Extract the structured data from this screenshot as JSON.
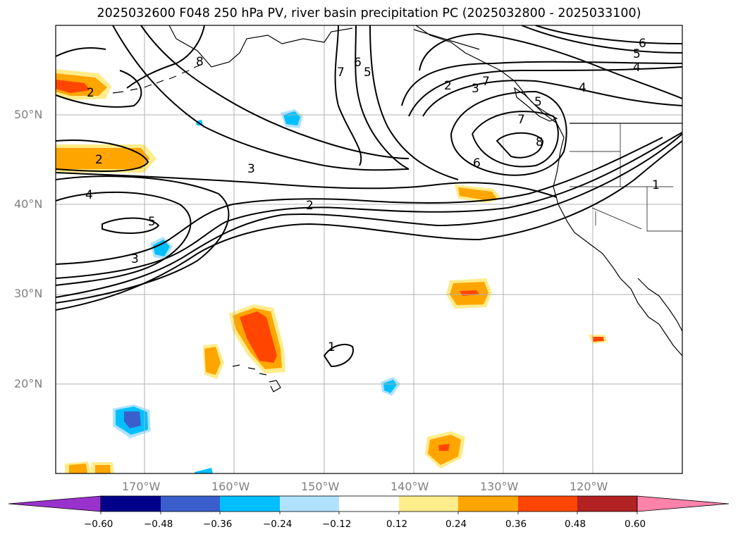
{
  "title": "2025032600 F048 250 hPa PV, river basin precipitation PC (2025032800 - 2025033100)",
  "map": {
    "lon_labels": [
      "170°W",
      "160°W",
      "150°W",
      "140°W",
      "130°W",
      "120°W"
    ],
    "lat_labels": [
      "50°N",
      "40°N",
      "30°N",
      "20°N"
    ],
    "extent": {
      "lon_min": -180,
      "lon_max": -110,
      "lat_min": 10,
      "lat_max": 60
    }
  },
  "contour_labels": [
    "1",
    "2",
    "3",
    "4",
    "5",
    "6",
    "7",
    "8"
  ],
  "colorbar": {
    "ticks": [
      "−0.60",
      "−0.48",
      "−0.36",
      "−0.24",
      "−0.12",
      "0.12",
      "0.24",
      "0.36",
      "0.48",
      "0.60"
    ],
    "colors": [
      "#9932cc",
      "#00008b",
      "#3a5fcd",
      "#00bfff",
      "#b0e2ff",
      "#ffffff",
      "#ffec8b",
      "#ffa500",
      "#ff4500",
      "#b22222",
      "#ff82ab"
    ]
  }
}
